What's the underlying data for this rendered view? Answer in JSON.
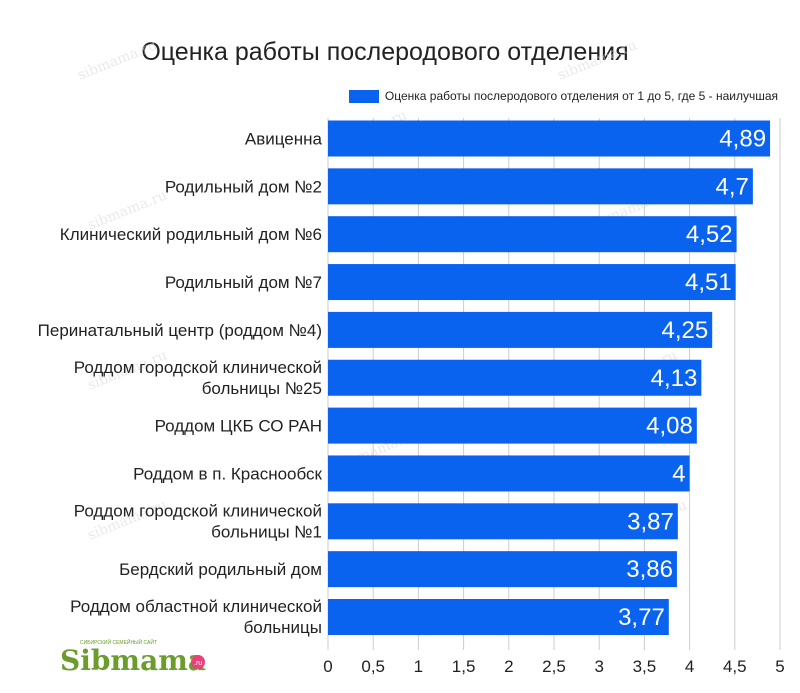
{
  "chart_data": {
    "type": "bar",
    "orientation": "horizontal",
    "title": "Оценка работы послеродового отделения",
    "categories": [
      "Авиценна",
      "Родильный дом №2",
      "Клинический родильный дом №6",
      "Родильный дом №7",
      "Перинатальный центр (роддом №4)",
      "Роддом городской клинической больницы №25",
      "Роддом ЦКБ СО РАН",
      "Роддом в п. Краснообск",
      "Роддом городской клинической больницы №1",
      "Бердский родильный дом",
      "Роддом областной клинической больницы"
    ],
    "category_lines": [
      [
        "Авиценна"
      ],
      [
        "Родильный дом №2"
      ],
      [
        "Клинический родильный дом №6"
      ],
      [
        "Родильный дом №7"
      ],
      [
        "Перинатальный центр (роддом №4)"
      ],
      [
        "Роддом городской клинической",
        "больницы №25"
      ],
      [
        "Роддом ЦКБ СО РАН"
      ],
      [
        "Роддом в п. Краснообск"
      ],
      [
        "Роддом городской клинической",
        "больницы №1"
      ],
      [
        "Бердский родильный дом"
      ],
      [
        "Роддом областной клинической",
        "больницы"
      ]
    ],
    "series": [
      {
        "name": "Оценка работы послеродового отделения от 1 до 5, где 5 - наилучшая",
        "values": [
          4.89,
          4.7,
          4.52,
          4.51,
          4.25,
          4.13,
          4.08,
          4,
          3.87,
          3.86,
          3.77
        ],
        "labels": [
          "4,89",
          "4,7",
          "4,52",
          "4,51",
          "4,25",
          "4,13",
          "4,08",
          "4",
          "3,87",
          "3,86",
          "3,77"
        ],
        "color": "#0a63ef"
      }
    ],
    "xlim": [
      0,
      5
    ],
    "xticks": [
      0,
      0.5,
      1,
      1.5,
      2,
      2.5,
      3,
      3.5,
      4,
      4.5,
      5
    ],
    "xtick_labels": [
      "0",
      "0,5",
      "1",
      "1,5",
      "2",
      "2,5",
      "3",
      "3,5",
      "4",
      "4,5",
      "5"
    ],
    "grid": true,
    "legend_position": "top-right"
  },
  "watermark": {
    "text": "sibmama.ru",
    "logo_text": "Sibmama",
    "logo_suffix": ".ru",
    "logo_tagline": "СИБИРСКИЙ СЕМЕЙНЫЙ САЙТ",
    "logo_color": "#6a9d2c"
  },
  "colors": {
    "bar": "#0a63ef",
    "grid": "#cccccc",
    "text": "#222222"
  }
}
